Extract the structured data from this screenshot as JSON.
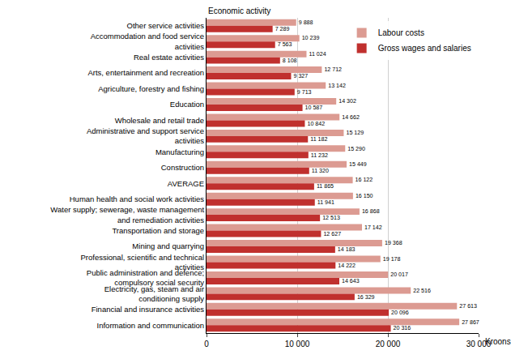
{
  "chart_data": {
    "type": "bar",
    "orientation": "horizontal",
    "x_label": "Kroons",
    "y_label": "Economic activity",
    "categories": [
      "Other service activities",
      "Accommodation and food service activities",
      "Real estate activities",
      "Arts, entertainment and recreation",
      "Agriculture, forestry and fishing",
      "Education",
      "Wholesale and retail trade",
      "Administrative and support service activities",
      "Manufacturing",
      "Construction",
      "AVERAGE",
      "Human health and social work activities",
      "Water supply; sewerage, waste management and remediation activities",
      "Transportation and storage",
      "Mining and quarrying",
      "Professional, scientific and technical activities",
      "Public administration and defence; compulsory social security",
      "Electricity, gas, steam and air conditioning supply",
      "Financial and insurance activities",
      "Information and communication"
    ],
    "series": [
      {
        "name": "Labour costs",
        "color": "#dc9b92",
        "values": [
          9888,
          10239,
          11024,
          12712,
          13142,
          14302,
          14662,
          15129,
          15290,
          15449,
          16122,
          16150,
          16868,
          17142,
          19368,
          19178,
          20017,
          22516,
          27613,
          27867
        ],
        "value_labels": [
          "9 888",
          "10 239",
          "11 024",
          "12 712",
          "13 142",
          "14 302",
          "14 662",
          "15 129",
          "15 290",
          "15 449",
          "16 122",
          "16 150",
          "16 868",
          "17 142",
          "19 368",
          "19 178",
          "20 017",
          "22 516",
          "27 613",
          "27 867"
        ]
      },
      {
        "name": "Gross wages and salaries",
        "color": "#c0302e",
        "values": [
          7289,
          7563,
          8108,
          9327,
          9713,
          10587,
          10842,
          11182,
          11232,
          11320,
          11865,
          11941,
          12513,
          12627,
          14183,
          14222,
          14643,
          16329,
          20096,
          20316
        ],
        "value_labels": [
          "7 289",
          "7 563",
          "8 108",
          "9 327",
          "9 713",
          "10 587",
          "10 842",
          "11 182",
          "11 232",
          "11 320",
          "11 865",
          "11 941",
          "12 513",
          "12 627",
          "14 183",
          "14 222",
          "14 643",
          "16 329",
          "20 096",
          "20 316"
        ]
      }
    ],
    "xlim": [
      0,
      30000
    ],
    "xticks": [
      0,
      {
        "value": 10000,
        "label": "10 000"
      },
      {
        "value": 20000,
        "label": "20 000"
      },
      {
        "value": 30000,
        "label": "30 000"
      }
    ],
    "grid": true,
    "legend": "top right",
    "data_labels": true
  }
}
